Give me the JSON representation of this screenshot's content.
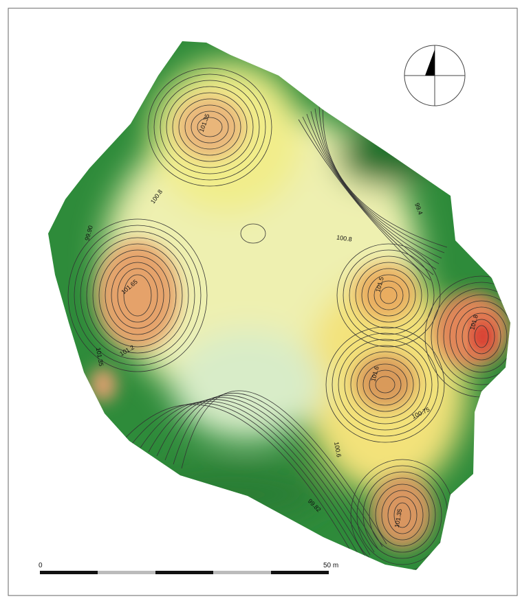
{
  "map": {
    "contour_labels": [
      "101.35",
      "100.8",
      "99.90",
      "99.4",
      "100.8",
      "101.65",
      "101.2",
      "101.35",
      "101.5",
      "101.8",
      "101.6",
      "100.75",
      "100.6",
      "99.82",
      "101.35"
    ],
    "scale_bar": {
      "start_label": "0",
      "end_label": "50 m"
    }
  }
}
